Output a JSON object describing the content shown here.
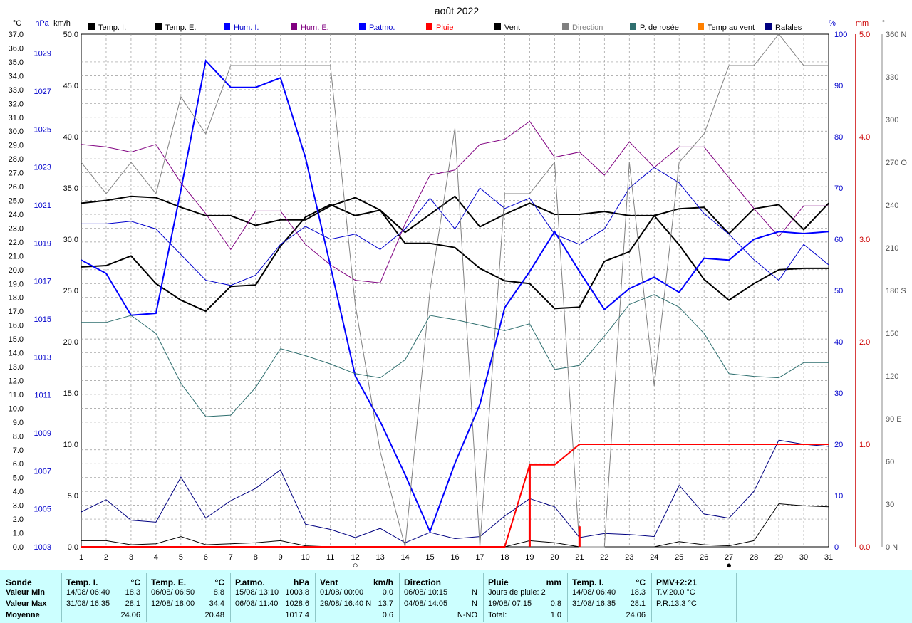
{
  "title": "août 2022",
  "axes": {
    "left_units": [
      "°C",
      "hPa",
      "km/h"
    ],
    "right_units": [
      "%",
      "mm",
      "°"
    ],
    "temp_ticks": [
      "37.0",
      "36.0",
      "35.0",
      "34.0",
      "33.0",
      "32.0",
      "31.0",
      "30.0",
      "29.0",
      "28.0",
      "27.0",
      "26.0",
      "25.0",
      "24.0",
      "23.0",
      "22.0",
      "21.0",
      "20.0",
      "19.0",
      "18.0",
      "17.0",
      "16.0",
      "15.0",
      "14.0",
      "13.0",
      "12.0",
      "11.0",
      "10.0",
      "9.0",
      "8.0",
      "7.0",
      "6.0",
      "5.0",
      "4.0",
      "3.0",
      "2.0",
      "1.0",
      "0.0"
    ],
    "hpa_ticks": [
      "1029",
      "1027",
      "1025",
      "1023",
      "1021",
      "1019",
      "1017",
      "1015",
      "1013",
      "1011",
      "1009",
      "1007",
      "1005",
      "1003"
    ],
    "kmh_ticks": [
      "50.0",
      "45.0",
      "40.0",
      "35.0",
      "30.0",
      "25.0",
      "20.0",
      "15.0",
      "10.0",
      "5.0",
      "0.0"
    ],
    "pct_ticks": [
      "100",
      "90",
      "80",
      "70",
      "60",
      "50",
      "40",
      "30",
      "20",
      "10",
      "0"
    ],
    "mm_ticks": [
      "5.0",
      "4.0",
      "3.0",
      "2.0",
      "1.0",
      "0.0"
    ],
    "deg_ticks": [
      "360 N",
      "330",
      "300",
      "270 O",
      "240",
      "210",
      "180 S",
      "150",
      "120",
      "90 E",
      "60",
      "30",
      "0 N"
    ],
    "x_ticks": [
      "1",
      "2",
      "3",
      "4",
      "5",
      "6",
      "7",
      "8",
      "9",
      "10",
      "11",
      "12",
      "13",
      "14",
      "15",
      "16",
      "17",
      "18",
      "19",
      "20",
      "21",
      "22",
      "23",
      "24",
      "25",
      "26",
      "27",
      "28",
      "29",
      "30",
      "31"
    ]
  },
  "legend": [
    {
      "label": "Temp. I.",
      "color": "#000000"
    },
    {
      "label": "Temp. E.",
      "color": "#000000"
    },
    {
      "label": "Hum. I.",
      "color": "#0000ff"
    },
    {
      "label": "Hum. E.",
      "color": "#800080"
    },
    {
      "label": "P.atmo.",
      "color": "#0000ff"
    },
    {
      "label": "Pluie",
      "color": "#ff0000"
    },
    {
      "label": "Vent",
      "color": "#000000"
    },
    {
      "label": "Direction",
      "color": "#808080"
    },
    {
      "label": "P. de rosée",
      "color": "#2f6f6f"
    },
    {
      "label": "Temp au vent",
      "color": "#ff8000"
    },
    {
      "label": "Rafales",
      "color": "#000080"
    }
  ],
  "chart_data": {
    "type": "line",
    "x": [
      1,
      2,
      3,
      4,
      5,
      6,
      7,
      8,
      9,
      10,
      11,
      12,
      13,
      14,
      15,
      16,
      17,
      18,
      19,
      20,
      21,
      22,
      23,
      24,
      25,
      26,
      27,
      28,
      29,
      30,
      31
    ],
    "ylim_temp": [
      0,
      37
    ],
    "ylim_hpa": [
      1003,
      1030
    ],
    "ylim_kmh": [
      0,
      50
    ],
    "ylim_pct": [
      0,
      100
    ],
    "ylim_mm": [
      0,
      5
    ],
    "ylim_deg": [
      0,
      360
    ],
    "series": [
      {
        "name": "Temp. I.",
        "axis": "temp",
        "color": "#000000",
        "width": 2,
        "values": [
          24.8,
          25.0,
          25.3,
          25.2,
          24.5,
          23.9,
          23.9,
          23.2,
          23.6,
          23.6,
          24.6,
          25.2,
          24.3,
          22.7,
          24.0,
          25.3,
          23.1,
          24.0,
          24.8,
          24.0,
          24.0,
          24.2,
          23.9,
          23.9,
          24.4,
          24.5,
          22.6,
          24.4,
          24.7,
          22.9,
          24.8
        ]
      },
      {
        "name": "Temp. E.",
        "axis": "temp",
        "color": "#000000",
        "width": 2,
        "values": [
          20.2,
          20.3,
          21.0,
          19.0,
          17.8,
          17.0,
          18.8,
          18.9,
          21.7,
          23.8,
          24.7,
          23.9,
          24.3,
          21.9,
          21.9,
          21.6,
          20.1,
          19.2,
          19.0,
          17.2,
          17.3,
          20.6,
          21.3,
          23.9,
          21.8,
          19.3,
          17.8,
          19.0,
          20.0,
          20.1,
          20.1
        ]
      },
      {
        "name": "Hum. I.",
        "axis": "pct",
        "color": "#0000cc",
        "width": 1,
        "values": [
          63,
          63,
          63.5,
          62,
          57,
          52,
          51,
          53,
          59,
          62.5,
          60,
          61,
          58,
          62,
          68,
          62,
          70,
          66,
          68,
          61,
          59,
          62,
          70,
          74,
          71,
          65,
          61,
          56,
          52,
          59,
          55
        ]
      },
      {
        "name": "Hum. E.",
        "axis": "pct",
        "color": "#800080",
        "width": 1,
        "values": [
          78.5,
          78,
          77,
          78.5,
          71,
          65,
          58,
          65.5,
          65.5,
          59,
          55,
          52,
          51.5,
          63,
          72.5,
          73.5,
          78.5,
          79.5,
          83,
          76,
          77,
          72.5,
          79,
          74,
          78,
          78,
          72,
          66,
          60.5,
          66.5,
          66.5
        ]
      },
      {
        "name": "P.atmo.",
        "axis": "hpa",
        "color": "#0000ff",
        "width": 2,
        "values": [
          1018.1,
          1017.4,
          1015.2,
          1015.3,
          1021.8,
          1028.6,
          1027.2,
          1027.2,
          1027.7,
          1023.5,
          1017.8,
          1012.0,
          1009.6,
          1006.8,
          1003.8,
          1007.4,
          1010.5,
          1015.6,
          1017.5,
          1019.6,
          1017.5,
          1015.5,
          1016.6,
          1017.2,
          1016.4,
          1018.2,
          1018.1,
          1019.2,
          1019.6,
          1019.5,
          1019.6
        ]
      },
      {
        "name": "Rafales",
        "axis": "kmh",
        "color": "#000080",
        "width": 1,
        "values": [
          3.4,
          4.6,
          2.6,
          2.4,
          6.8,
          2.8,
          4.5,
          5.7,
          7.5,
          2.2,
          1.7,
          0.9,
          1.8,
          0.4,
          1.4,
          0.8,
          1.0,
          3.0,
          4.7,
          3.9,
          0.9,
          1.3,
          1.2,
          1.0,
          6.0,
          3.2,
          2.8,
          5.4,
          10.4,
          10.0,
          9.8
        ]
      },
      {
        "name": "Vent",
        "axis": "kmh",
        "color": "#000000",
        "width": 1,
        "values": [
          0.6,
          0.6,
          0.2,
          0.3,
          1.0,
          0.2,
          0.3,
          0.4,
          0.6,
          0.1,
          0,
          0,
          0,
          0,
          0,
          0,
          0,
          0,
          0.6,
          0.4,
          0,
          0,
          0,
          0,
          0.5,
          0.2,
          0.1,
          0.6,
          4.2,
          4.0,
          3.9
        ]
      },
      {
        "name": "Direction",
        "axis": "deg",
        "color": "#808080",
        "width": 1,
        "values": [
          270,
          248,
          270,
          248,
          316,
          290,
          338,
          338,
          338,
          338,
          338,
          170,
          67,
          0,
          180,
          294,
          0,
          248,
          248,
          270,
          0,
          0,
          270,
          113,
          270,
          290,
          338,
          338,
          360,
          338,
          338
        ]
      },
      {
        "name": "P. de rosée",
        "axis": "temp",
        "color": "#2f6f6f",
        "width": 1,
        "values": [
          16.2,
          16.2,
          16.7,
          15.4,
          11.8,
          9.4,
          9.5,
          11.5,
          14.3,
          13.8,
          13.2,
          12.5,
          12.2,
          13.5,
          16.7,
          16.4,
          16.0,
          15.6,
          16.1,
          12.8,
          13.1,
          15.2,
          17.5,
          18.2,
          17.3,
          15.4,
          12.5,
          12.3,
          12.2,
          13.3,
          13.3
        ]
      }
    ],
    "rain_cumulative": {
      "name": "Pluie",
      "axis": "mm",
      "color": "#ff0000",
      "x": [
        1,
        17,
        18,
        19,
        20,
        21,
        31
      ],
      "values": [
        0,
        0,
        0,
        0.8,
        0.8,
        1.0,
        1.0
      ],
      "bars": [
        {
          "x": 19,
          "value": 0.8
        },
        {
          "x": 21,
          "value": 0.2
        }
      ]
    },
    "markers": [
      {
        "x": 12,
        "symbol": "○"
      },
      {
        "x": 27,
        "symbol": "●"
      }
    ]
  },
  "summary": {
    "row_labels": [
      "Sonde",
      "Valeur Min",
      "Valeur Max",
      "Moyenne"
    ],
    "blocks": [
      {
        "header": "Temp. I.",
        "unit": "°C",
        "rows": [
          [
            "14/08/ 06:40",
            "18.3"
          ],
          [
            "31/08/ 16:35",
            "28.1"
          ],
          [
            "",
            "24.06"
          ]
        ]
      },
      {
        "header": "Temp. E.",
        "unit": "°C",
        "rows": [
          [
            "06/08/ 06:50",
            "8.8"
          ],
          [
            "12/08/ 18:00",
            "34.4"
          ],
          [
            "",
            "20.48"
          ]
        ]
      },
      {
        "header": "P.atmo.",
        "unit": "hPa",
        "rows": [
          [
            "15/08/ 13:10",
            "1003.8"
          ],
          [
            "06/08/ 11:40",
            "1028.6"
          ],
          [
            "",
            "1017.4"
          ]
        ]
      },
      {
        "header": "Vent",
        "unit": "km/h",
        "rows": [
          [
            "01/08/ 00:00",
            "0.0"
          ],
          [
            "29/08/ 16:40 N",
            "13.7"
          ],
          [
            "",
            "0.6"
          ]
        ]
      },
      {
        "header": "Direction",
        "unit": "",
        "rows": [
          [
            "06/08/ 10:15",
            "N"
          ],
          [
            "04/08/ 14:05",
            "N"
          ],
          [
            "",
            "N-NO"
          ]
        ]
      },
      {
        "header": "Pluie",
        "unit": "mm",
        "rows": [
          [
            "Jours de pluie: 2",
            ""
          ],
          [
            "19/08/ 07:15",
            "0.8"
          ],
          [
            "Total:",
            "1.0"
          ]
        ]
      },
      {
        "header": "Temp. I.",
        "unit": "°C",
        "rows": [
          [
            "14/08/ 06:40",
            "18.3"
          ],
          [
            "31/08/ 16:35",
            "28.1"
          ],
          [
            "",
            "24.06"
          ]
        ]
      },
      {
        "header": "PMV+2:21",
        "unit": "",
        "rows": [
          [
            "T.V.20.0 °C",
            ""
          ],
          [
            "P.R.13.3 °C",
            ""
          ],
          [
            "",
            ""
          ]
        ]
      }
    ]
  }
}
